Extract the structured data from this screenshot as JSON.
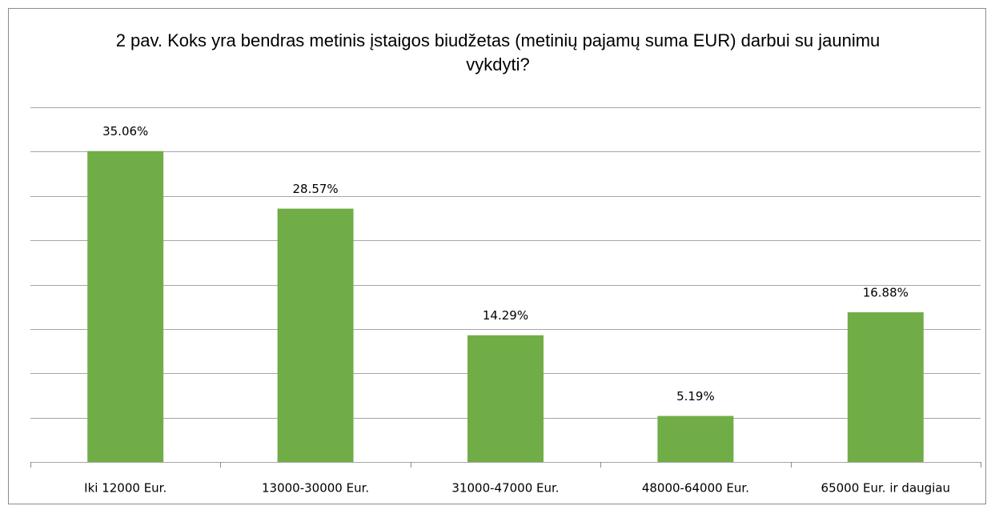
{
  "chart_data": {
    "type": "bar",
    "title": "2 pav. Koks yra bendras metinis įstaigos biudžetas (metinių pajamų suma EUR) darbui su jaunimu vykdyti?",
    "categories": [
      "Iki 12000 Eur.",
      "13000-30000 Eur.",
      "31000-47000 Eur.",
      "48000-64000 Eur.",
      "65000 Eur. ir daugiau"
    ],
    "values": [
      35.06,
      28.57,
      14.29,
      5.19,
      16.88
    ],
    "value_labels": [
      "35.06%",
      "28.57%",
      "14.29%",
      "5.19%",
      "16.88%"
    ],
    "color": "#70ad47",
    "ylim": [
      0,
      40
    ],
    "yticks": [
      0,
      5,
      10,
      15,
      20,
      25,
      30,
      35,
      40
    ],
    "grid": true
  }
}
